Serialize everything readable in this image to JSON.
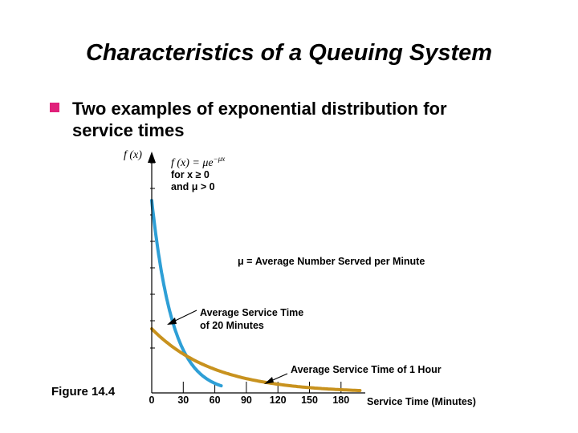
{
  "slide": {
    "title": "Characteristics of a Queuing System",
    "bullet_line1": "Two examples of exponential distribution for",
    "bullet_line2": "service times",
    "figure_label": "Figure 14.4"
  },
  "chart_data": {
    "type": "line",
    "xlabel": "Service Time (Minutes)",
    "ylabel": "f (x)",
    "x_ticks": [
      "0",
      "30",
      "60",
      "90",
      "120",
      "150",
      "180"
    ],
    "xlim": [
      0,
      200
    ],
    "formula": {
      "line1": "f (x) = μe",
      "exponent": "−μx",
      "line2": "for x ≥ 0",
      "line3": "and μ > 0"
    },
    "annotations": {
      "mu_def": "μ = Average Number Served per Minute",
      "avg20_line1": "Average Service Time",
      "avg20_line2": "of 20 Minutes",
      "avg60": "Average Service Time of 1 Hour"
    },
    "series": [
      {
        "name": "Average Service Time of 20 Minutes",
        "mean": 20,
        "color": "#2e9fd6"
      },
      {
        "name": "Average Service Time of 1 Hour",
        "mean": 60,
        "color": "#c8921e"
      }
    ]
  }
}
